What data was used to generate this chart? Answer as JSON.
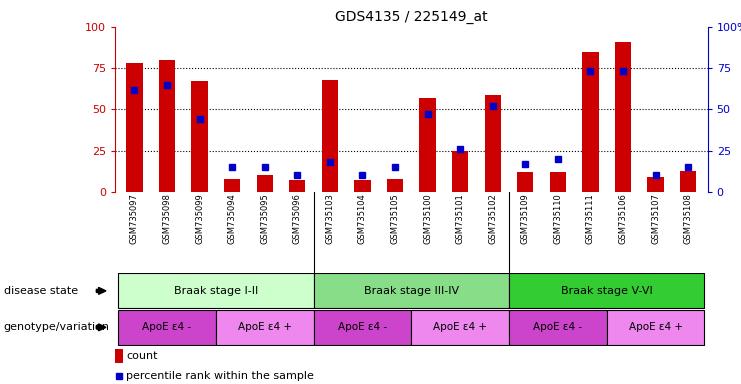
{
  "title": "GDS4135 / 225149_at",
  "samples": [
    "GSM735097",
    "GSM735098",
    "GSM735099",
    "GSM735094",
    "GSM735095",
    "GSM735096",
    "GSM735103",
    "GSM735104",
    "GSM735105",
    "GSM735100",
    "GSM735101",
    "GSM735102",
    "GSM735109",
    "GSM735110",
    "GSM735111",
    "GSM735106",
    "GSM735107",
    "GSM735108"
  ],
  "counts": [
    78,
    80,
    67,
    8,
    10,
    7,
    68,
    7,
    8,
    57,
    25,
    59,
    12,
    12,
    85,
    91,
    9,
    13
  ],
  "percentiles": [
    62,
    65,
    44,
    15,
    15,
    10,
    18,
    10,
    15,
    47,
    26,
    52,
    17,
    20,
    73,
    73,
    10,
    15
  ],
  "disease_stages": [
    {
      "label": "Braak stage I-II",
      "start": 0,
      "end": 6,
      "color": "#ccffcc"
    },
    {
      "label": "Braak stage III-IV",
      "start": 6,
      "end": 12,
      "color": "#88dd88"
    },
    {
      "label": "Braak stage V-VI",
      "start": 12,
      "end": 18,
      "color": "#33cc33"
    }
  ],
  "genotype_groups": [
    {
      "label": "ApoE ε4 -",
      "start": 0,
      "end": 3,
      "color": "#cc44cc"
    },
    {
      "label": "ApoE ε4 +",
      "start": 3,
      "end": 6,
      "color": "#ee88ee"
    },
    {
      "label": "ApoE ε4 -",
      "start": 6,
      "end": 9,
      "color": "#cc44cc"
    },
    {
      "label": "ApoE ε4 +",
      "start": 9,
      "end": 12,
      "color": "#ee88ee"
    },
    {
      "label": "ApoE ε4 -",
      "start": 12,
      "end": 15,
      "color": "#cc44cc"
    },
    {
      "label": "ApoE ε4 +",
      "start": 15,
      "end": 18,
      "color": "#ee88ee"
    }
  ],
  "bar_color": "#cc0000",
  "dot_color": "#0000cc",
  "ylim": [
    0,
    100
  ],
  "grid_values": [
    25,
    50,
    75
  ],
  "legend_count_label": "count",
  "legend_percentile_label": "percentile rank within the sample",
  "label_disease_state": "disease state",
  "label_genotype": "genotype/variation",
  "background_color": "#ffffff",
  "tick_color_left": "#cc0000",
  "tick_color_right": "#0000cc",
  "xtick_bg": "#d4d4d4"
}
